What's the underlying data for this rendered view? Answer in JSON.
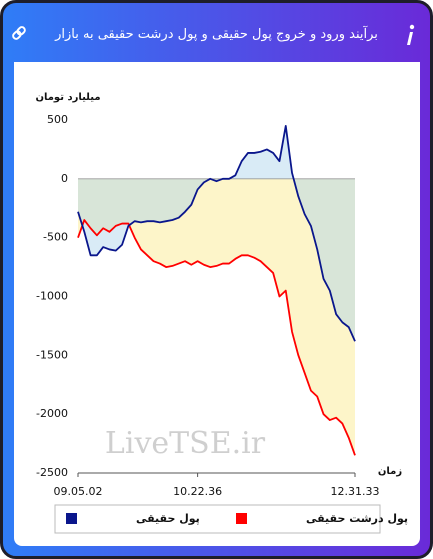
{
  "header": {
    "title": "برآیند ورود و خروج پول حقیقی و پول درشت حقیقی به بازار"
  },
  "chart_data": {
    "type": "line",
    "ylabel": "میلیارد تومان",
    "xlabel": "زمان",
    "watermark": "LiveTSE.ir",
    "categories": [
      "09.05.02",
      null,
      null,
      null,
      null,
      null,
      null,
      null,
      null,
      null,
      null,
      null,
      null,
      null,
      null,
      null,
      null,
      null,
      null,
      "10.22.36",
      null,
      null,
      null,
      null,
      null,
      null,
      null,
      null,
      null,
      null,
      null,
      null,
      null,
      null,
      null,
      null,
      null,
      null,
      null,
      null,
      null,
      null,
      null,
      null,
      "12.31.33"
    ],
    "ylim": [
      -2500,
      500
    ],
    "yticks": [
      500,
      0,
      -500,
      -1000,
      -1500,
      -2000,
      -2500
    ],
    "series": [
      {
        "name": "پول حقیقی",
        "color": "#0a168c",
        "area": "rgba(170,210,235,0.45)",
        "values": [
          -280,
          -450,
          -650,
          -650,
          -580,
          -600,
          -610,
          -560,
          -400,
          -360,
          -370,
          -360,
          -360,
          -370,
          -360,
          -350,
          -330,
          -280,
          -220,
          -90,
          -30,
          0,
          -20,
          0,
          0,
          30,
          150,
          220,
          220,
          230,
          250,
          220,
          150,
          450,
          50,
          -150,
          -300,
          -400,
          -600,
          -850,
          -950,
          -1150,
          -1220,
          -1260,
          -1380
        ]
      },
      {
        "name": "پول درشت حقیقی",
        "color": "#ff0000",
        "area": "#fdf5c9",
        "values": [
          -500,
          -350,
          -420,
          -480,
          -420,
          -450,
          -400,
          -380,
          -380,
          -500,
          -600,
          -650,
          -700,
          -720,
          -750,
          -740,
          -720,
          -700,
          -730,
          -700,
          -730,
          -750,
          -740,
          -720,
          -720,
          -680,
          -650,
          -650,
          -670,
          -700,
          -750,
          -800,
          -1000,
          -950,
          -1300,
          -1500,
          -1650,
          -1800,
          -1850,
          -2000,
          -2050,
          -2030,
          -2080,
          -2200,
          -2350
        ]
      }
    ]
  }
}
